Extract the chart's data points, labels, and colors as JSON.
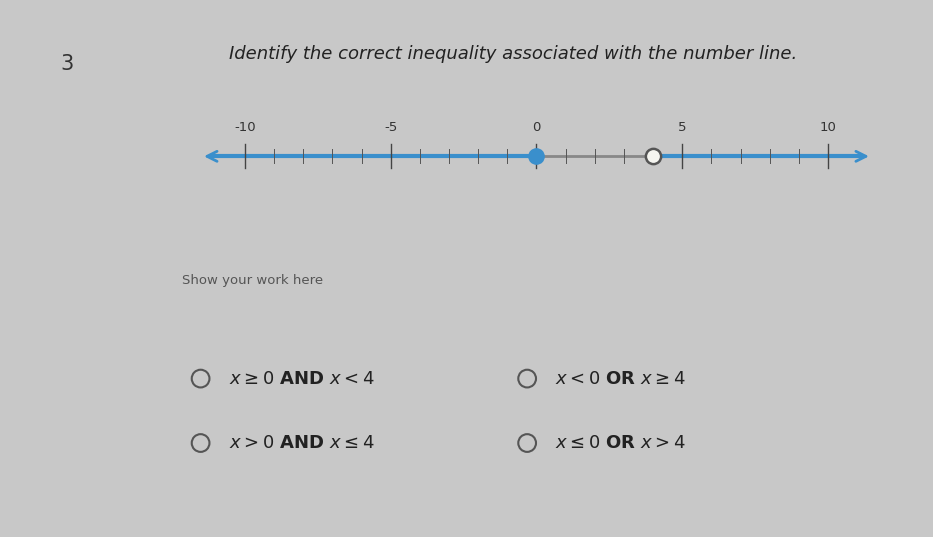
{
  "title": "Identify the correct inequality associated with the number line.",
  "question_number": "3",
  "number_line": {
    "xmin": -11.5,
    "xmax": 11.5,
    "tick_major": [
      -10,
      -5,
      0,
      5,
      10
    ],
    "closed_point": 0,
    "open_point": 4,
    "highlight_color": "#3a8fcc",
    "unhighlighted_color": "#888888"
  },
  "show_work_label": "Show your work here",
  "options": [
    {
      "col": 0,
      "row": 0,
      "label": "x ≥ 0 AND x < 4"
    },
    {
      "col": 1,
      "row": 0,
      "label": "x < 0 OR x ≥ 4"
    },
    {
      "col": 0,
      "row": 1,
      "label": "x > 0 AND x ≤ 4"
    },
    {
      "col": 1,
      "row": 1,
      "label": "x ≤ 0 OR x > 4"
    }
  ],
  "left_bg": "#c8c8c8",
  "right_bg": "#e8e8e8",
  "panel_bg": "#f5f5f0",
  "title_color": "#222222",
  "title_fontsize": 13,
  "option_fontsize": 13
}
